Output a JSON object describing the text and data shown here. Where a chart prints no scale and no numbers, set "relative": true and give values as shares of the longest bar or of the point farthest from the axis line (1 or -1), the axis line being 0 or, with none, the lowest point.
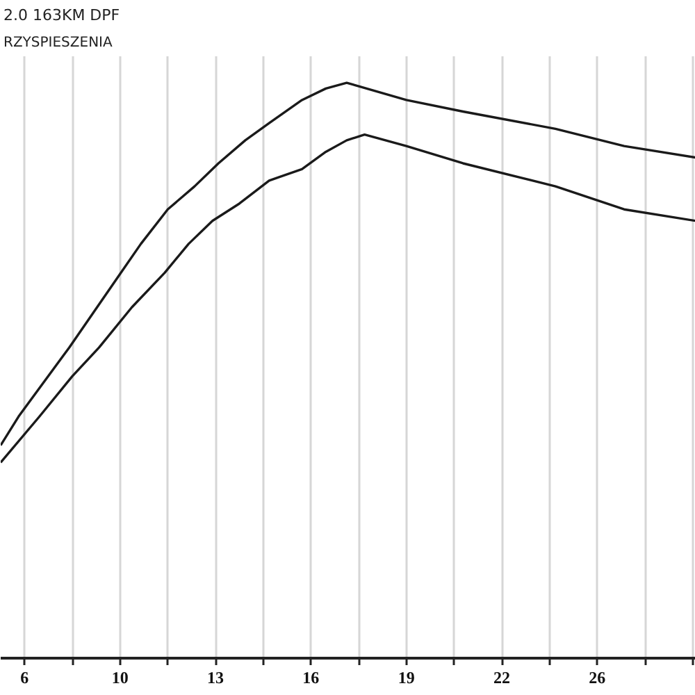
{
  "chart_data": {
    "type": "line",
    "title": "2.0 163KM DPF",
    "subtitle": "RZYSPIESZENIA",
    "relative": true,
    "grid": "x",
    "xlim": [
      5.6,
      28.9
    ],
    "xticks": [
      {
        "value": 6.4,
        "label": "6"
      },
      {
        "value": 8.0,
        "label": null
      },
      {
        "value": 9.6,
        "label": "10"
      },
      {
        "value": 11.2,
        "label": null
      },
      {
        "value": 12.8,
        "label": "13"
      },
      {
        "value": 14.4,
        "label": null
      },
      {
        "value": 16.0,
        "label": "16"
      },
      {
        "value": 17.6,
        "label": null
      },
      {
        "value": 19.2,
        "label": "19"
      },
      {
        "value": 20.8,
        "label": null
      },
      {
        "value": 22.4,
        "label": "22"
      },
      {
        "value": 24.0,
        "label": null
      },
      {
        "value": 25.6,
        "label": "26"
      },
      {
        "value": 27.2,
        "label": null
      },
      {
        "value": 28.8,
        "label": null
      }
    ],
    "series": [
      {
        "color": "#1a1a1a",
        "x": [
          5.6,
          6.2,
          7.9,
          8.7,
          9.5,
          10.3,
          11.2,
          12.1,
          12.9,
          13.8,
          14.6,
          15.7,
          16.5,
          17.2,
          19.2,
          21.1,
          24.2,
          26.5,
          28.9
        ],
        "values": [
          0.37,
          0.42,
          0.54,
          0.6,
          0.66,
          0.72,
          0.78,
          0.82,
          0.86,
          0.9,
          0.93,
          0.97,
          0.99,
          1,
          0.97,
          0.95,
          0.92,
          0.89,
          0.87
        ]
      },
      {
        "color": "#1a1a1a",
        "x": [
          5.6,
          6.9,
          8.0,
          8.9,
          10.0,
          11.1,
          11.9,
          12.7,
          13.6,
          14.6,
          15.7,
          16.5,
          17.2,
          17.8,
          19.2,
          21.1,
          24.2,
          26.5,
          28.9
        ],
        "values": [
          0.34,
          0.42,
          0.49,
          0.54,
          0.61,
          0.67,
          0.72,
          0.76,
          0.79,
          0.83,
          0.85,
          0.88,
          0.9,
          0.91,
          0.89,
          0.86,
          0.82,
          0.78,
          0.76
        ]
      }
    ]
  }
}
